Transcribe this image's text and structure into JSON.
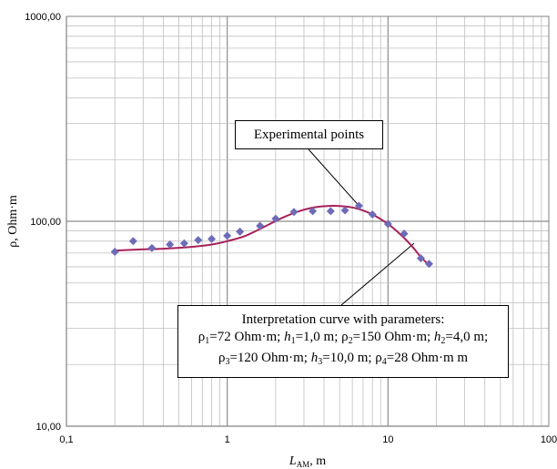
{
  "chart_data": {
    "type": "scatter",
    "x_scale": "log",
    "y_scale": "log",
    "xlim": [
      0.1,
      100
    ],
    "ylim": [
      10,
      1000
    ],
    "grid": true,
    "x_ticks": [
      "0,1",
      "1",
      "10",
      "100"
    ],
    "y_ticks": [
      "10,00",
      "100,00",
      "1000,00"
    ],
    "xlabel": "L",
    "xlabel_sub": "AM",
    "xlabel_unit": ", m",
    "ylabel": "ρ, Ohm·m",
    "colors": {
      "points": "#6E6CB8",
      "curve": "#A8205A"
    },
    "series": [
      {
        "kind": "points",
        "marker": "diamond",
        "x": [
          0.2,
          0.26,
          0.34,
          0.44,
          0.54,
          0.66,
          0.8,
          1.0,
          1.2,
          1.6,
          2.0,
          2.6,
          3.4,
          4.4,
          5.4,
          6.6,
          8.0,
          10.0,
          12.6,
          16.0,
          18.0
        ],
        "y": [
          71,
          80,
          74,
          77,
          78,
          81,
          82,
          85,
          89,
          95,
          103,
          111,
          112,
          112,
          113,
          119,
          108,
          97,
          87,
          66,
          62
        ]
      },
      {
        "kind": "curve",
        "x": [
          0.2,
          0.3,
          0.4,
          0.6,
          0.8,
          1.0,
          1.3,
          1.7,
          2.2,
          2.8,
          3.5,
          4.5,
          5.5,
          6.5,
          8.0,
          10.0,
          12.0,
          14.0,
          16.0,
          18.0
        ],
        "y": [
          72,
          73,
          73.5,
          75,
          77,
          80,
          85,
          94,
          104,
          112,
          117,
          119,
          118,
          115,
          108,
          97,
          86,
          76,
          67,
          61
        ]
      }
    ],
    "annotations": {
      "experimental": "Experimental points",
      "interpretation_title": "Interpretation curve with parameters:"
    }
  }
}
